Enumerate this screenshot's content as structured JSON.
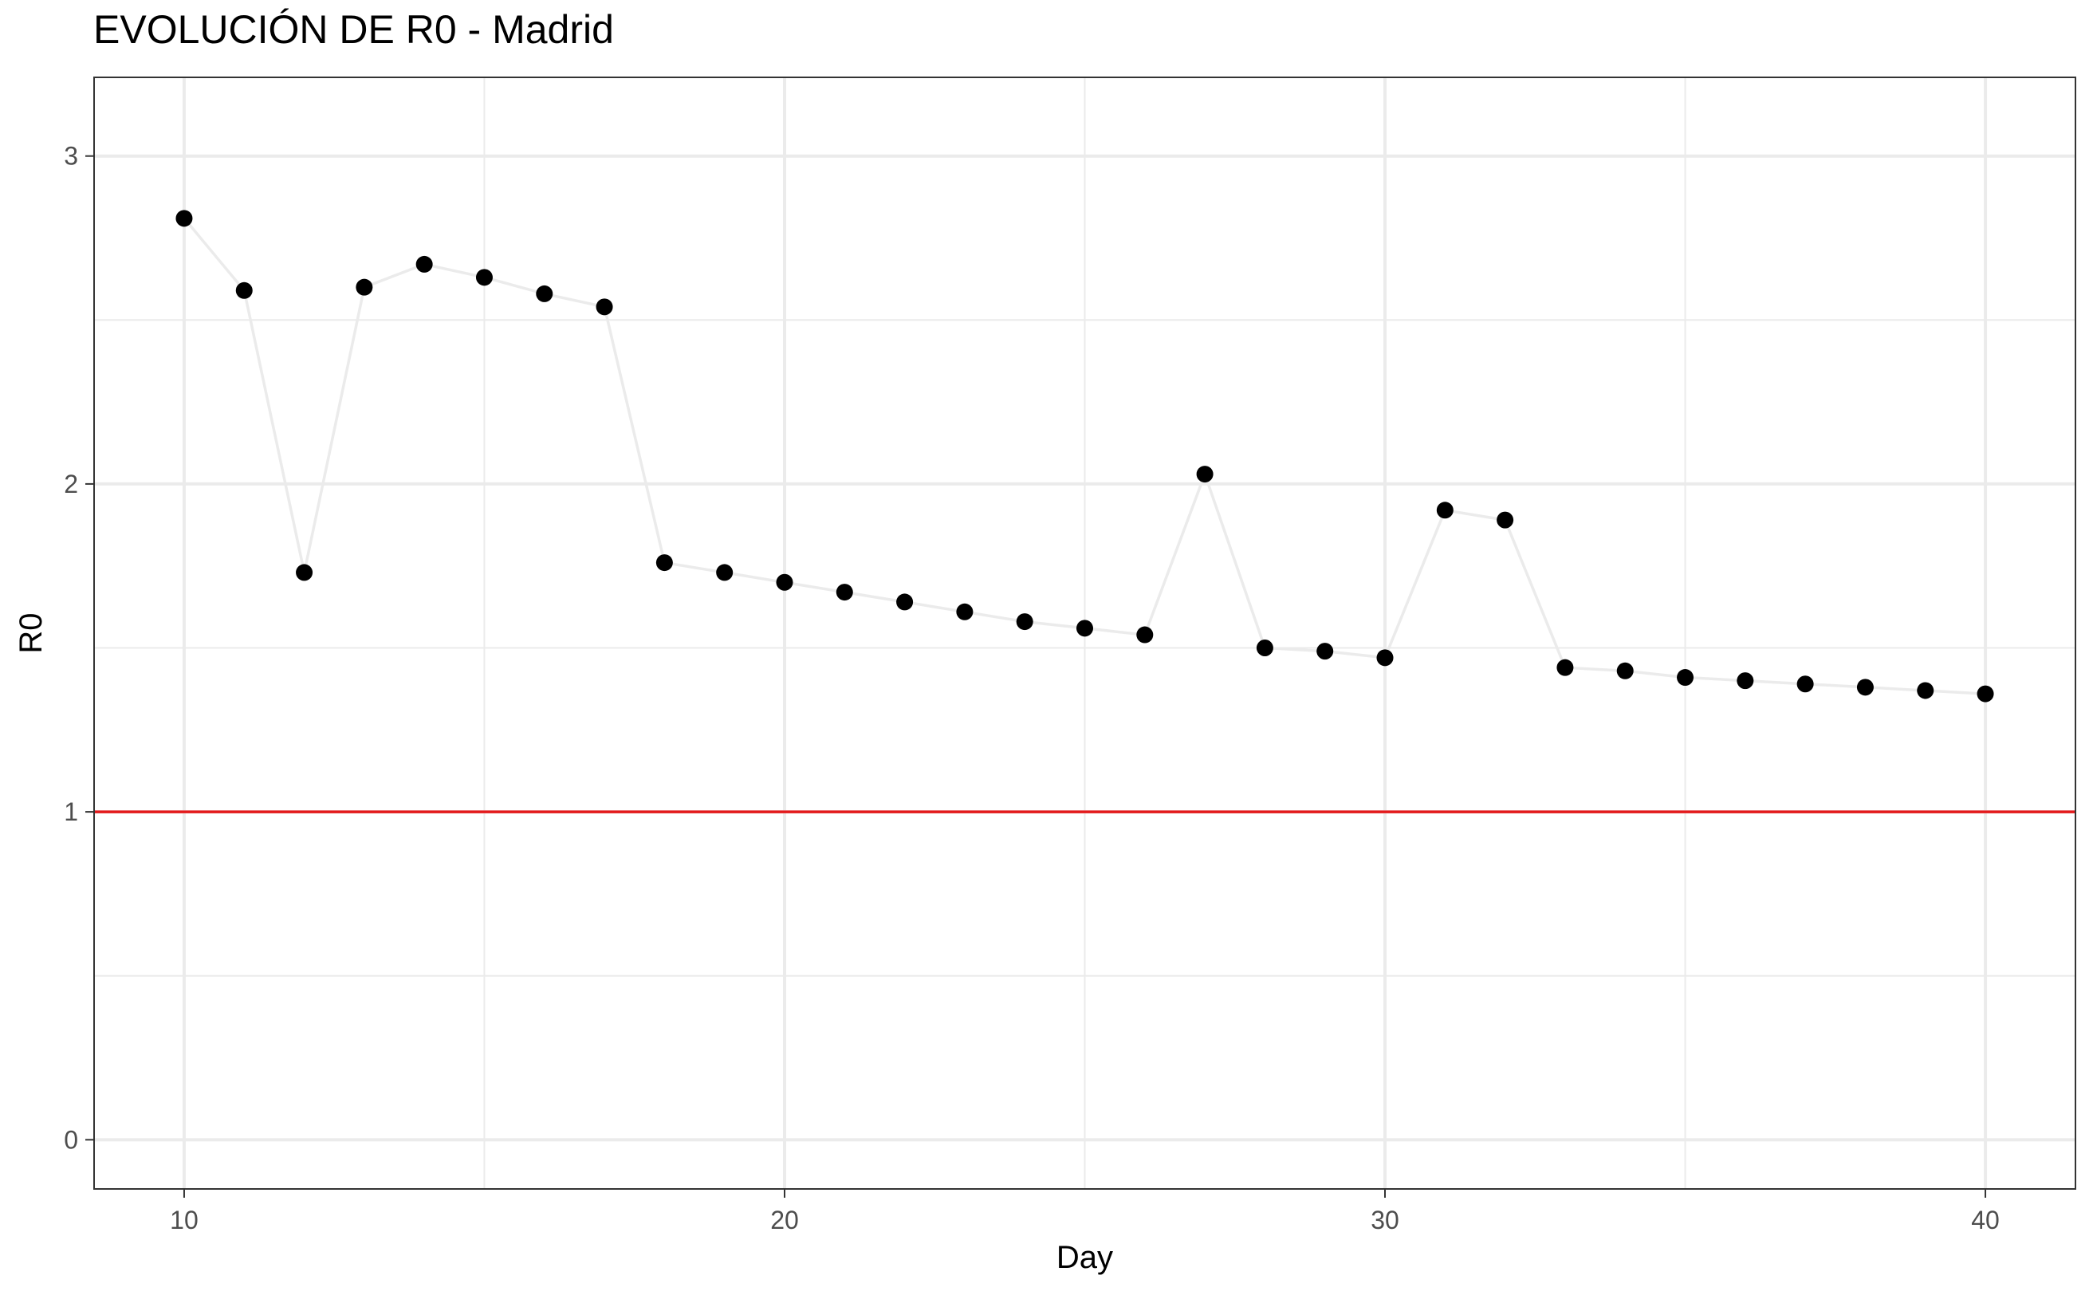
{
  "chart_data": {
    "type": "scatter",
    "title": "EVOLUCIÓN DE R0 - Madrid",
    "xlabel": "Day",
    "ylabel": "R0",
    "xlim": [
      8.5,
      41.5
    ],
    "ylim": [
      -0.15,
      3.24
    ],
    "x_ticks": [
      10,
      20,
      30,
      40
    ],
    "x_minor_ticks": [
      15,
      25,
      35
    ],
    "y_ticks": [
      0,
      1,
      2,
      3
    ],
    "y_minor_ticks": [
      0.5,
      1.5,
      2.5
    ],
    "grid": true,
    "legend": "none",
    "reference_line": {
      "y": 1,
      "color": "#e41a1c"
    },
    "series": [
      {
        "x": [
          10,
          11,
          12,
          13,
          14,
          15,
          16,
          17,
          18,
          19,
          20,
          21,
          22,
          23,
          24,
          25,
          26,
          27,
          28,
          29,
          30,
          31,
          32,
          33,
          34,
          35,
          36,
          37,
          38,
          39,
          40
        ],
        "values": [
          2.81,
          2.59,
          1.73,
          2.6,
          2.67,
          2.63,
          2.58,
          2.54,
          1.76,
          1.73,
          1.7,
          1.67,
          1.64,
          1.61,
          1.58,
          1.56,
          1.54,
          2.03,
          1.5,
          1.49,
          1.47,
          1.92,
          1.89,
          1.44,
          1.43,
          1.41,
          1.4,
          1.39,
          1.38,
          1.37,
          1.36
        ],
        "color": "#000000",
        "line_color": "#ebebeb"
      }
    ]
  }
}
